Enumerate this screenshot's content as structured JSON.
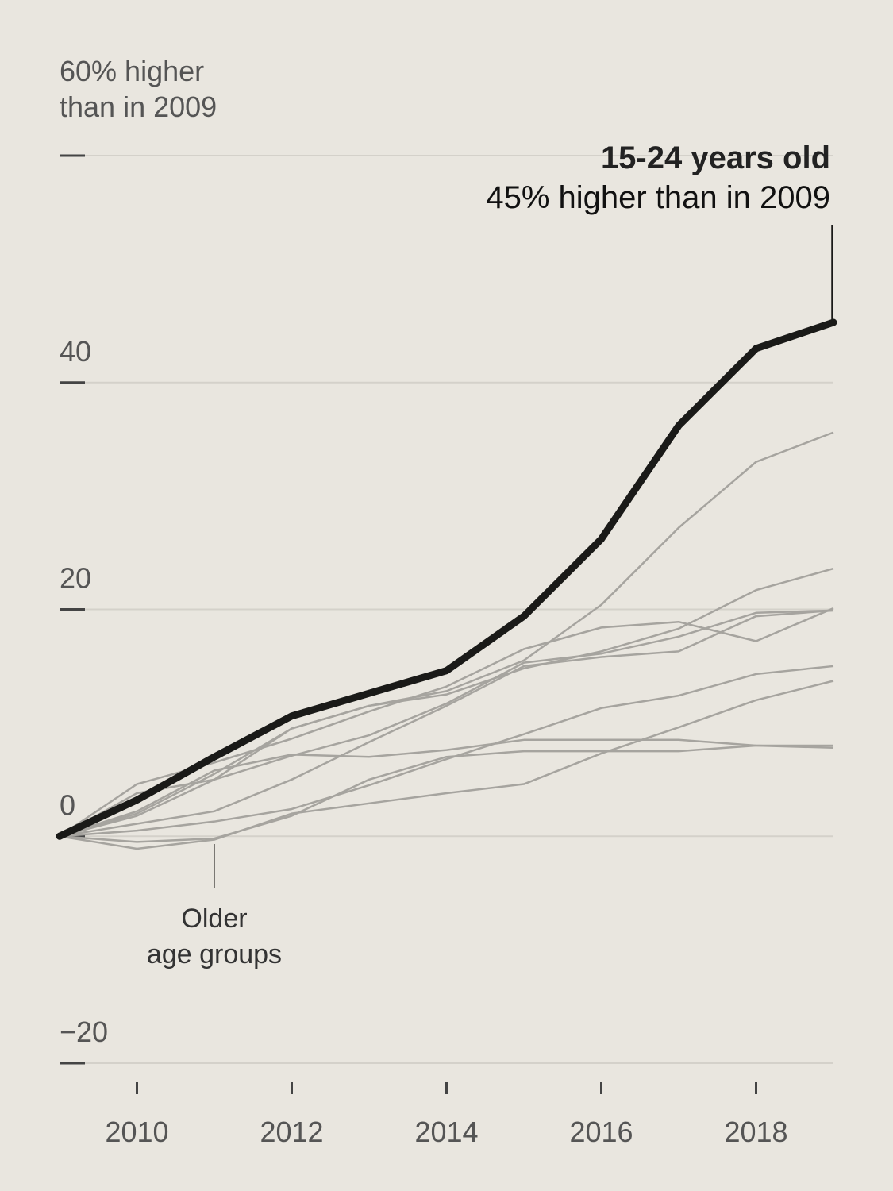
{
  "chart_data": {
    "type": "line",
    "x": [
      2009,
      2010,
      2011,
      2012,
      2013,
      2014,
      2015,
      2016,
      2017,
      2018,
      2019
    ],
    "xticks": [
      2010,
      2012,
      2014,
      2016,
      2018
    ],
    "xlim": [
      2009,
      2019
    ],
    "ylim": [
      -20,
      60
    ],
    "yticks": [
      -20,
      0,
      20,
      40,
      60
    ],
    "ytick_labels": [
      "−20",
      "0",
      "20",
      "40",
      ""
    ],
    "ylabel_line1": "60% higher",
    "ylabel_line2": "than in 2009",
    "grid": true,
    "highlight": {
      "name": "15-24 years old",
      "label": "45% higher than in 2009",
      "color": "#1a1a18",
      "values": [
        0,
        3.2,
        7,
        10.6,
        12.6,
        14.6,
        19.4,
        26.2,
        36.2,
        43,
        45.3
      ]
    },
    "others_label_line1": "Older",
    "others_label_line2": "age groups",
    "others_color": "#a6a49f",
    "series": [
      {
        "values": [
          0,
          2,
          5.5,
          9.5,
          11.5,
          12.8,
          15.5,
          20.4,
          27.2,
          33,
          35.6
        ]
      },
      {
        "values": [
          0,
          1.8,
          5,
          9.5,
          11.5,
          12.5,
          14.8,
          16.3,
          18.3,
          21.7,
          23.6
        ]
      },
      {
        "values": [
          0,
          4.6,
          6.5,
          8.6,
          11,
          13.2,
          16.5,
          18.4,
          18.9,
          17.2,
          20.1
        ]
      },
      {
        "values": [
          0,
          3.8,
          5,
          7.1,
          8.9,
          11.7,
          15.3,
          16.1,
          17.6,
          19.7,
          19.9
        ]
      },
      {
        "values": [
          0,
          2.2,
          5.8,
          7.2,
          7,
          7.6,
          8.5,
          8.5,
          8.5,
          8,
          7.8
        ]
      },
      {
        "values": [
          0,
          1.1,
          2.2,
          5,
          8.3,
          11.5,
          15,
          15.8,
          16.3,
          19.4,
          19.9
        ]
      },
      {
        "values": [
          0,
          0.5,
          1.3,
          2.4,
          4.5,
          6.8,
          9,
          11.3,
          12.4,
          14.3,
          15
        ]
      },
      {
        "values": [
          0,
          -1.1,
          -0.3,
          2,
          2.9,
          3.8,
          4.6,
          7.3,
          9.6,
          12,
          13.7
        ]
      },
      {
        "values": [
          0,
          -0.5,
          -0.2,
          1.8,
          5,
          7,
          7.5,
          7.5,
          7.5,
          8,
          8
        ]
      }
    ]
  }
}
